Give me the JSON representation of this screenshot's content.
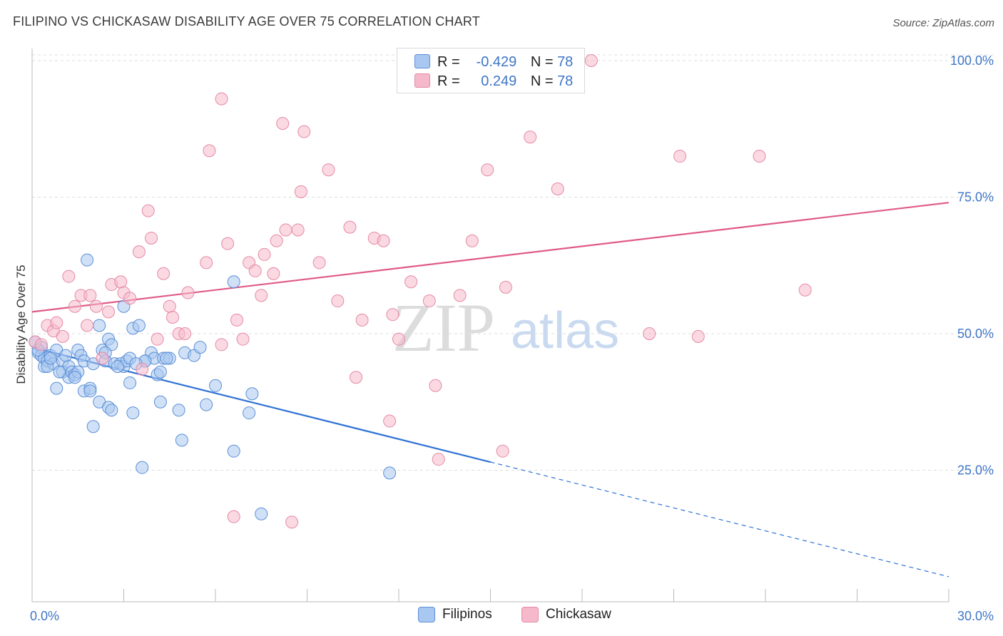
{
  "title": "FILIPINO VS CHICKASAW DISABILITY AGE OVER 75 CORRELATION CHART",
  "source": "Source: ZipAtlas.com",
  "watermark": {
    "zip": "ZIP",
    "atlas": "atlas"
  },
  "legend": {
    "rows": [
      {
        "r_label": "R =",
        "r_value": "-0.429",
        "n_label": "N =",
        "n_value": "78",
        "color": "#a9c8f1"
      },
      {
        "r_label": "R =",
        "r_value": "0.249",
        "n_label": "N =",
        "n_value": "78",
        "color": "#f5b9cb"
      }
    ]
  },
  "bottom_legend": {
    "filipinos": "Filipinos",
    "chickasaw": "Chickasaw"
  },
  "colors": {
    "blue_fill": "#a9c8f1",
    "blue_stroke": "#5b8fd6",
    "blue_line": "#2f72d4",
    "pink_fill": "#f5b9cb",
    "pink_stroke": "#e58aa7",
    "pink_line": "#e05a86"
  },
  "chart_data": {
    "type": "scatter",
    "title": "FILIPINO VS CHICKASAW DISABILITY AGE OVER 75 CORRELATION CHART",
    "xlabel": "",
    "ylabel": "Disability Age Over 75",
    "xlim": [
      0,
      30
    ],
    "ylim": [
      0,
      105
    ],
    "x_tick_labels": [
      "0.0%",
      "30.0%"
    ],
    "y_ticks": [
      25,
      50,
      75,
      100
    ],
    "y_tick_labels": [
      "25.0%",
      "50.0%",
      "75.0%",
      "100.0%"
    ],
    "grid": "horizontal dashed",
    "series": [
      {
        "name": "Filipinos",
        "r": -0.429,
        "n": 78,
        "trend": {
          "x": [
            0,
            15
          ],
          "y": [
            47.5,
            26.5
          ],
          "dashed_to": [
            30,
            5.5
          ]
        },
        "points": [
          [
            0.1,
            48.5
          ],
          [
            0.2,
            46.5
          ],
          [
            0.3,
            47.5
          ],
          [
            0.3,
            46
          ],
          [
            0.4,
            45.5
          ],
          [
            0.4,
            44
          ],
          [
            0.5,
            45
          ],
          [
            0.6,
            46
          ],
          [
            0.7,
            44.5
          ],
          [
            0.8,
            47
          ],
          [
            0.8,
            40
          ],
          [
            1,
            45
          ],
          [
            1,
            43
          ],
          [
            1.1,
            46
          ],
          [
            1.2,
            44
          ],
          [
            1.2,
            42
          ],
          [
            1.3,
            43
          ],
          [
            1.4,
            42.5
          ],
          [
            1.5,
            43
          ],
          [
            1.5,
            47
          ],
          [
            1.6,
            46
          ],
          [
            1.7,
            45
          ],
          [
            1.7,
            39.5
          ],
          [
            1.8,
            63.5
          ],
          [
            1.9,
            40
          ],
          [
            2,
            33
          ],
          [
            2,
            44.5
          ],
          [
            2.2,
            51.5
          ],
          [
            2.2,
            37.5
          ],
          [
            2.3,
            47
          ],
          [
            2.4,
            45
          ],
          [
            2.5,
            36.5
          ],
          [
            2.5,
            49
          ],
          [
            2.6,
            48
          ],
          [
            2.6,
            36
          ],
          [
            2.7,
            44.5
          ],
          [
            2.9,
            44.5
          ],
          [
            3,
            44
          ],
          [
            3,
            55
          ],
          [
            3.1,
            45
          ],
          [
            3.2,
            45.5
          ],
          [
            3.2,
            41
          ],
          [
            3.3,
            35.5
          ],
          [
            3.3,
            51
          ],
          [
            3.5,
            51.5
          ],
          [
            3.6,
            25.5
          ],
          [
            3.7,
            45
          ],
          [
            3.9,
            46.5
          ],
          [
            4,
            45.5
          ],
          [
            4.1,
            42.5
          ],
          [
            4.2,
            43
          ],
          [
            4.2,
            37.5
          ],
          [
            4.3,
            45.5
          ],
          [
            4.5,
            45.5
          ],
          [
            4.8,
            36
          ],
          [
            4.9,
            30.5
          ],
          [
            5,
            46.5
          ],
          [
            5.3,
            46
          ],
          [
            5.5,
            47.5
          ],
          [
            5.7,
            37
          ],
          [
            6,
            40.5
          ],
          [
            6.6,
            28.5
          ],
          [
            6.6,
            59.5
          ],
          [
            7.1,
            35.5
          ],
          [
            7.2,
            39
          ],
          [
            7.5,
            17
          ],
          [
            11.7,
            24.5
          ],
          [
            0.2,
            47
          ],
          [
            0.5,
            44
          ],
          [
            1.4,
            42
          ],
          [
            2.8,
            44
          ],
          [
            3.7,
            45
          ],
          [
            0.6,
            45.5
          ],
          [
            1.9,
            39.5
          ],
          [
            3.4,
            44.5
          ],
          [
            4.4,
            45.5
          ],
          [
            2.4,
            46.5
          ],
          [
            0.9,
            43
          ]
        ]
      },
      {
        "name": "Chickasaw",
        "r": 0.249,
        "n": 78,
        "trend": {
          "x": [
            0,
            30
          ],
          "y": [
            54,
            74
          ]
        },
        "points": [
          [
            0.1,
            48.5
          ],
          [
            0.3,
            48
          ],
          [
            0.5,
            51.5
          ],
          [
            0.7,
            50.5
          ],
          [
            0.8,
            52
          ],
          [
            1,
            49.5
          ],
          [
            1.2,
            60.5
          ],
          [
            1.4,
            55
          ],
          [
            1.6,
            57
          ],
          [
            1.8,
            51.5
          ],
          [
            1.9,
            57
          ],
          [
            2.1,
            55
          ],
          [
            2.3,
            45.5
          ],
          [
            2.5,
            54
          ],
          [
            2.6,
            59
          ],
          [
            2.9,
            59.5
          ],
          [
            3,
            57.5
          ],
          [
            3.2,
            56.5
          ],
          [
            3.5,
            65
          ],
          [
            3.6,
            43.5
          ],
          [
            3.8,
            72.5
          ],
          [
            3.9,
            67.5
          ],
          [
            4.1,
            49
          ],
          [
            4.3,
            61
          ],
          [
            4.5,
            55
          ],
          [
            4.6,
            53
          ],
          [
            4.8,
            50
          ],
          [
            5,
            50
          ],
          [
            5.1,
            57.5
          ],
          [
            5.7,
            63
          ],
          [
            5.8,
            83.5
          ],
          [
            6.2,
            93
          ],
          [
            6.2,
            48
          ],
          [
            6.4,
            66.5
          ],
          [
            6.6,
            16.5
          ],
          [
            6.7,
            52.5
          ],
          [
            6.9,
            49
          ],
          [
            7.1,
            63
          ],
          [
            7.3,
            61.5
          ],
          [
            7.5,
            57
          ],
          [
            7.6,
            64.5
          ],
          [
            7.9,
            61
          ],
          [
            8,
            67
          ],
          [
            8.2,
            88.5
          ],
          [
            8.3,
            69
          ],
          [
            8.5,
            15.5
          ],
          [
            8.7,
            69
          ],
          [
            8.8,
            76
          ],
          [
            8.9,
            87
          ],
          [
            9.4,
            63
          ],
          [
            9.7,
            80
          ],
          [
            10,
            56
          ],
          [
            10.4,
            69.5
          ],
          [
            10.6,
            42
          ],
          [
            10.8,
            52.5
          ],
          [
            11.2,
            67.5
          ],
          [
            11.5,
            67
          ],
          [
            11.7,
            34
          ],
          [
            11.8,
            53.5
          ],
          [
            12,
            49
          ],
          [
            12.4,
            59.5
          ],
          [
            13,
            56
          ],
          [
            13.2,
            40.5
          ],
          [
            13.3,
            27
          ],
          [
            14,
            57
          ],
          [
            14.4,
            67
          ],
          [
            14.9,
            80
          ],
          [
            15.4,
            28.5
          ],
          [
            15.5,
            58.5
          ],
          [
            16.2,
            99.5
          ],
          [
            16.3,
            86
          ],
          [
            17.2,
            76.5
          ],
          [
            18.3,
            100
          ],
          [
            20.2,
            50
          ],
          [
            21.2,
            82.5
          ],
          [
            21.8,
            49.5
          ],
          [
            23.8,
            82.5
          ],
          [
            25.3,
            58
          ]
        ]
      }
    ]
  }
}
